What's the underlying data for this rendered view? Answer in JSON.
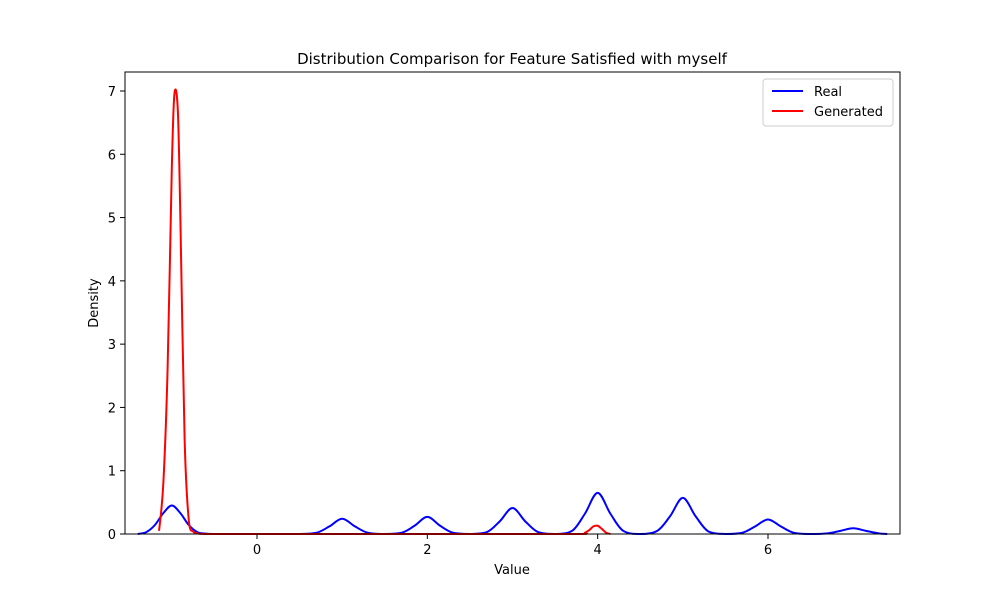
{
  "chart_data": {
    "type": "line",
    "title": "Distribution Comparison for Feature Satisfied with myself",
    "xlabel": "Value",
    "ylabel": "Density",
    "xlim": [
      -1.55,
      7.55
    ],
    "ylim": [
      0,
      7.3
    ],
    "xticks": [
      0,
      2,
      4,
      6
    ],
    "yticks": [
      0,
      1,
      2,
      3,
      4,
      5,
      6,
      7
    ],
    "grid": false,
    "legend_position": "top-right",
    "series": [
      {
        "name": "Real",
        "color": "#0000ff",
        "x": [
          -1.4,
          -1.3,
          -1.2,
          -1.1,
          -1.0,
          -0.9,
          -0.8,
          -0.7,
          -0.6,
          -0.5,
          -0.3,
          0.0,
          0.3,
          0.5,
          0.7,
          0.85,
          1.0,
          1.15,
          1.3,
          1.5,
          1.7,
          1.85,
          2.0,
          2.15,
          2.3,
          2.5,
          2.7,
          2.85,
          3.0,
          3.15,
          3.3,
          3.5,
          3.7,
          3.85,
          4.0,
          4.15,
          4.3,
          4.5,
          4.7,
          4.85,
          5.0,
          5.15,
          5.3,
          5.5,
          5.7,
          5.85,
          6.0,
          6.15,
          6.3,
          6.5,
          6.7,
          6.85,
          7.0,
          7.15,
          7.3,
          7.4
        ],
        "y": [
          0.0,
          0.03,
          0.14,
          0.33,
          0.45,
          0.33,
          0.14,
          0.03,
          0.005,
          0.0,
          0.0,
          0.0,
          0.0,
          0.0,
          0.02,
          0.12,
          0.24,
          0.12,
          0.02,
          0.0,
          0.02,
          0.13,
          0.27,
          0.13,
          0.02,
          0.0,
          0.03,
          0.2,
          0.41,
          0.2,
          0.03,
          0.0,
          0.05,
          0.32,
          0.65,
          0.32,
          0.05,
          0.0,
          0.05,
          0.28,
          0.57,
          0.28,
          0.04,
          0.0,
          0.02,
          0.12,
          0.23,
          0.12,
          0.02,
          0.0,
          0.01,
          0.05,
          0.09,
          0.05,
          0.01,
          0.0
        ]
      },
      {
        "name": "Generated",
        "color": "#ff0000",
        "x": [
          -1.15,
          -1.1,
          -1.05,
          -1.0,
          -0.97,
          -0.93,
          -0.9,
          -0.85,
          -0.8,
          -0.75,
          -0.7,
          -0.6,
          0.0,
          1.0,
          2.0,
          3.0,
          3.8,
          3.85,
          3.9,
          3.95,
          4.0,
          4.05,
          4.1,
          4.15
        ],
        "y": [
          0.05,
          0.8,
          2.6,
          5.8,
          6.95,
          6.7,
          5.0,
          1.5,
          0.2,
          0.04,
          0.01,
          0.0,
          0.0,
          0.0,
          0.0,
          0.0,
          0.0,
          0.02,
          0.06,
          0.12,
          0.13,
          0.08,
          0.02,
          0.0
        ]
      }
    ]
  }
}
